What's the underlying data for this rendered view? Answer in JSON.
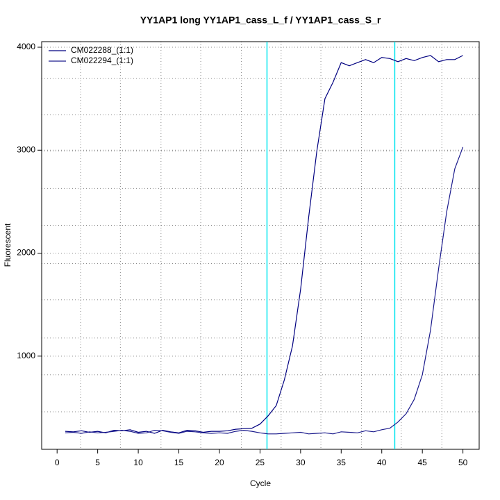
{
  "chart_data": {
    "type": "line",
    "title": "YY1AP1 long YY1AP1_cass_L_f / YY1AP1_cass_S_r",
    "x_label": "Cycle",
    "y_label": "Fluorescent",
    "x": [
      1,
      2,
      3,
      4,
      5,
      6,
      7,
      8,
      9,
      10,
      11,
      12,
      13,
      14,
      15,
      16,
      17,
      18,
      19,
      20,
      21,
      22,
      23,
      24,
      25,
      26,
      27,
      28,
      29,
      30,
      31,
      32,
      33,
      34,
      35,
      36,
      37,
      38,
      39,
      40,
      41,
      42,
      43,
      44,
      45,
      46,
      47,
      48,
      49,
      50
    ],
    "series": [
      {
        "name": "CM022288_(1:1)",
        "color": "#000080",
        "values": [
          270,
          265,
          275,
          260,
          270,
          255,
          280,
          275,
          285,
          260,
          270,
          250,
          280,
          265,
          255,
          280,
          275,
          260,
          270,
          270,
          275,
          290,
          295,
          300,
          340,
          420,
          520,
          770,
          1100,
          1650,
          2350,
          2990,
          3500,
          3660,
          3850,
          3820,
          3850,
          3880,
          3850,
          3900,
          3890,
          3860,
          3890,
          3870,
          3900,
          3920,
          3860,
          3880,
          3880,
          3920
        ]
      },
      {
        "name": "CM022294_(1:1)",
        "color": "#1a1a8c",
        "values": [
          255,
          260,
          250,
          265,
          255,
          260,
          270,
          280,
          270,
          250,
          255,
          280,
          275,
          260,
          250,
          270,
          265,
          255,
          250,
          255,
          250,
          270,
          280,
          270,
          255,
          245,
          245,
          250,
          255,
          260,
          245,
          250,
          255,
          245,
          265,
          260,
          255,
          275,
          265,
          285,
          300,
          360,
          440,
          580,
          820,
          1250,
          1850,
          2400,
          2820,
          3030
        ]
      }
    ],
    "vlines": [
      25.86,
      41.6
    ],
    "vline_color": "#00e5ee",
    "xlim": [
      -1.9,
      52
    ],
    "ylim": [
      95,
      4054
    ],
    "xticks": [
      0,
      5,
      10,
      15,
      20,
      25,
      30,
      35,
      40,
      45,
      50
    ],
    "yticks": [
      1000,
      2000,
      3000,
      4000
    ],
    "xgrid": [
      2.9,
      7.8,
      12.8,
      17.7,
      22.7,
      27.6,
      32.5,
      37.5,
      42.4,
      47.4
    ],
    "ygrid": [
      459,
      818,
      1176,
      1547,
      1899,
      2270,
      2628,
      2993,
      3345,
      3696
    ],
    "legend": "top-left"
  }
}
